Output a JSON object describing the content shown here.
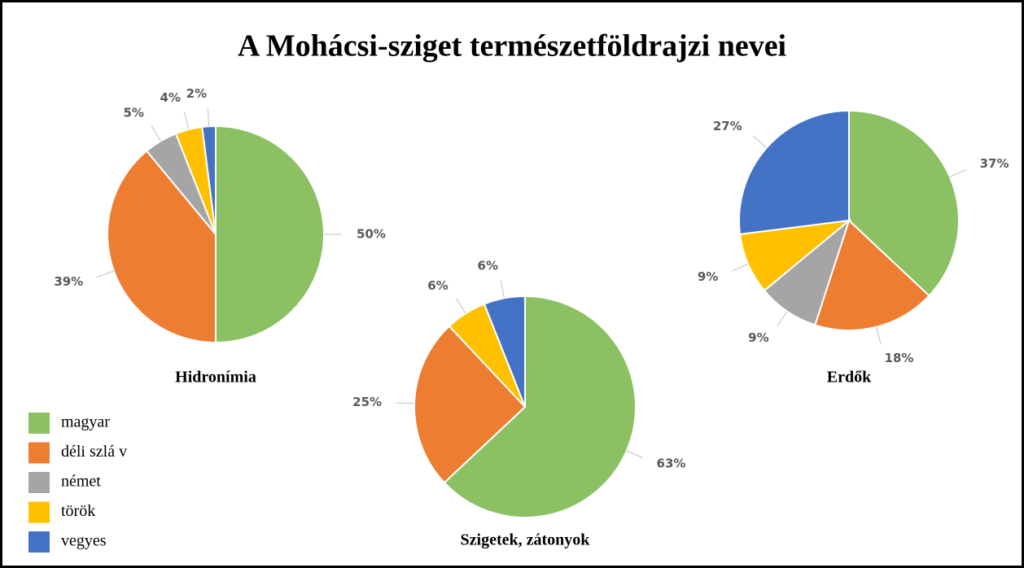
{
  "title": "A Mohácsi-sziget természetföldrajzi nevei",
  "legend": {
    "categories": [
      "magyar",
      "déli szlá v",
      "német",
      "török",
      "vegyes"
    ],
    "colors": [
      "#8bc163",
      "#ed7d31",
      "#a5a5a5",
      "#ffc000",
      "#4472c4"
    ]
  },
  "chart_data": [
    {
      "type": "pie",
      "title": "Hidronímia",
      "values": [
        50,
        39,
        5,
        4,
        2
      ],
      "value_labels": [
        "50%",
        "39%",
        "5%",
        "4%",
        "2%"
      ]
    },
    {
      "type": "pie",
      "title": "Szigetek, zátonyok",
      "values": [
        63,
        25,
        null,
        6,
        6
      ],
      "value_labels": [
        "63%",
        "25%",
        null,
        "6%",
        "6%"
      ]
    },
    {
      "type": "pie",
      "title": "Erdők",
      "values": [
        37,
        18,
        9,
        9,
        27
      ],
      "value_labels": [
        "37%",
        "18%",
        "9%",
        "9%",
        "27%"
      ]
    }
  ]
}
